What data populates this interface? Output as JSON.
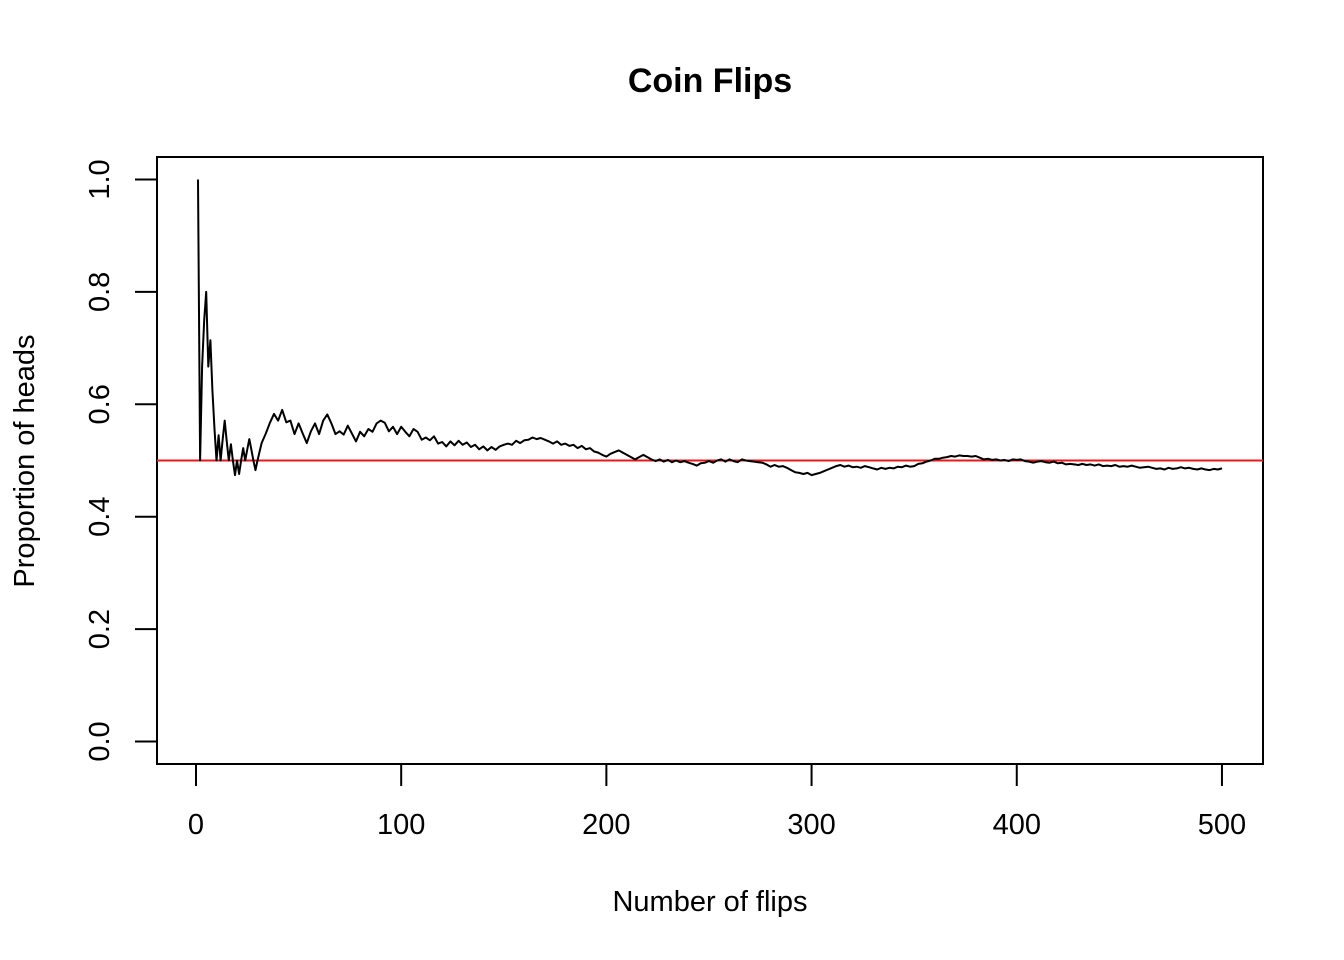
{
  "chart_data": {
    "type": "line",
    "title": "Coin Flips",
    "xlabel": "Number of flips",
    "ylabel": "Proportion of heads",
    "xlim": [
      -19,
      520
    ],
    "ylim": [
      -0.04,
      1.04
    ],
    "x_ticks": [
      0,
      100,
      200,
      300,
      400,
      500
    ],
    "x_tick_labels": [
      "0",
      "100",
      "200",
      "300",
      "400",
      "500"
    ],
    "y_ticks": [
      0.0,
      0.2,
      0.4,
      0.6,
      0.8,
      1.0
    ],
    "y_tick_labels": [
      "0.0",
      "0.2",
      "0.4",
      "0.6",
      "0.8",
      "1.0"
    ],
    "grid": false,
    "reference_line": {
      "y": 0.5,
      "color": "#e41a1c"
    },
    "series": [
      {
        "color": "#000000",
        "points": [
          [
            1,
            1.0
          ],
          [
            2,
            0.5
          ],
          [
            3,
            0.667
          ],
          [
            4,
            0.75
          ],
          [
            5,
            0.8
          ],
          [
            6,
            0.667
          ],
          [
            7,
            0.714
          ],
          [
            8,
            0.625
          ],
          [
            9,
            0.556
          ],
          [
            10,
            0.5
          ],
          [
            11,
            0.545
          ],
          [
            12,
            0.5
          ],
          [
            13,
            0.538
          ],
          [
            14,
            0.571
          ],
          [
            15,
            0.533
          ],
          [
            16,
            0.5
          ],
          [
            17,
            0.529
          ],
          [
            18,
            0.5
          ],
          [
            19,
            0.474
          ],
          [
            20,
            0.5
          ],
          [
            21,
            0.476
          ],
          [
            22,
            0.5
          ],
          [
            23,
            0.522
          ],
          [
            24,
            0.5
          ],
          [
            25,
            0.52
          ],
          [
            26,
            0.538
          ],
          [
            27,
            0.519
          ],
          [
            28,
            0.5
          ],
          [
            29,
            0.483
          ],
          [
            30,
            0.5
          ],
          [
            32,
            0.531
          ],
          [
            34,
            0.548
          ],
          [
            36,
            0.567
          ],
          [
            38,
            0.583
          ],
          [
            40,
            0.571
          ],
          [
            42,
            0.59
          ],
          [
            44,
            0.568
          ],
          [
            46,
            0.571
          ],
          [
            48,
            0.547
          ],
          [
            50,
            0.566
          ],
          [
            52,
            0.548
          ],
          [
            54,
            0.531
          ],
          [
            56,
            0.552
          ],
          [
            58,
            0.566
          ],
          [
            60,
            0.547
          ],
          [
            62,
            0.571
          ],
          [
            64,
            0.582
          ],
          [
            66,
            0.566
          ],
          [
            68,
            0.547
          ],
          [
            70,
            0.552
          ],
          [
            72,
            0.546
          ],
          [
            74,
            0.562
          ],
          [
            76,
            0.548
          ],
          [
            78,
            0.534
          ],
          [
            80,
            0.551
          ],
          [
            82,
            0.543
          ],
          [
            84,
            0.556
          ],
          [
            86,
            0.551
          ],
          [
            88,
            0.566
          ],
          [
            90,
            0.571
          ],
          [
            92,
            0.567
          ],
          [
            94,
            0.552
          ],
          [
            96,
            0.56
          ],
          [
            98,
            0.547
          ],
          [
            100,
            0.56
          ],
          [
            102,
            0.551
          ],
          [
            104,
            0.543
          ],
          [
            106,
            0.556
          ],
          [
            108,
            0.551
          ],
          [
            110,
            0.537
          ],
          [
            112,
            0.541
          ],
          [
            114,
            0.536
          ],
          [
            116,
            0.543
          ],
          [
            118,
            0.53
          ],
          [
            120,
            0.533
          ],
          [
            122,
            0.525
          ],
          [
            124,
            0.534
          ],
          [
            126,
            0.527
          ],
          [
            128,
            0.535
          ],
          [
            130,
            0.528
          ],
          [
            132,
            0.532
          ],
          [
            134,
            0.524
          ],
          [
            136,
            0.528
          ],
          [
            138,
            0.52
          ],
          [
            140,
            0.525
          ],
          [
            142,
            0.518
          ],
          [
            144,
            0.524
          ],
          [
            146,
            0.519
          ],
          [
            148,
            0.525
          ],
          [
            150,
            0.528
          ],
          [
            152,
            0.53
          ],
          [
            154,
            0.528
          ],
          [
            156,
            0.535
          ],
          [
            158,
            0.531
          ],
          [
            160,
            0.536
          ],
          [
            162,
            0.537
          ],
          [
            164,
            0.541
          ],
          [
            166,
            0.538
          ],
          [
            168,
            0.54
          ],
          [
            170,
            0.537
          ],
          [
            172,
            0.534
          ],
          [
            174,
            0.53
          ],
          [
            176,
            0.534
          ],
          [
            178,
            0.528
          ],
          [
            180,
            0.53
          ],
          [
            182,
            0.526
          ],
          [
            184,
            0.528
          ],
          [
            186,
            0.522
          ],
          [
            188,
            0.526
          ],
          [
            190,
            0.52
          ],
          [
            192,
            0.522
          ],
          [
            194,
            0.516
          ],
          [
            196,
            0.514
          ],
          [
            198,
            0.51
          ],
          [
            200,
            0.507
          ],
          [
            202,
            0.512
          ],
          [
            204,
            0.515
          ],
          [
            206,
            0.518
          ],
          [
            208,
            0.514
          ],
          [
            210,
            0.51
          ],
          [
            212,
            0.506
          ],
          [
            214,
            0.502
          ],
          [
            216,
            0.506
          ],
          [
            218,
            0.51
          ],
          [
            220,
            0.506
          ],
          [
            222,
            0.502
          ],
          [
            224,
            0.499
          ],
          [
            226,
            0.502
          ],
          [
            228,
            0.498
          ],
          [
            230,
            0.501
          ],
          [
            232,
            0.497
          ],
          [
            234,
            0.5
          ],
          [
            236,
            0.497
          ],
          [
            238,
            0.499
          ],
          [
            240,
            0.496
          ],
          [
            242,
            0.494
          ],
          [
            244,
            0.491
          ],
          [
            246,
            0.495
          ],
          [
            248,
            0.496
          ],
          [
            250,
            0.499
          ],
          [
            252,
            0.496
          ],
          [
            254,
            0.5
          ],
          [
            256,
            0.502
          ],
          [
            258,
            0.498
          ],
          [
            260,
            0.502
          ],
          [
            262,
            0.499
          ],
          [
            264,
            0.497
          ],
          [
            266,
            0.502
          ],
          [
            268,
            0.5
          ],
          [
            270,
            0.499
          ],
          [
            272,
            0.498
          ],
          [
            274,
            0.497
          ],
          [
            276,
            0.496
          ],
          [
            278,
            0.493
          ],
          [
            280,
            0.489
          ],
          [
            282,
            0.492
          ],
          [
            284,
            0.489
          ],
          [
            286,
            0.49
          ],
          [
            288,
            0.487
          ],
          [
            290,
            0.483
          ],
          [
            292,
            0.479
          ],
          [
            294,
            0.478
          ],
          [
            296,
            0.476
          ],
          [
            298,
            0.478
          ],
          [
            300,
            0.474
          ],
          [
            302,
            0.476
          ],
          [
            304,
            0.478
          ],
          [
            306,
            0.481
          ],
          [
            308,
            0.484
          ],
          [
            310,
            0.487
          ],
          [
            312,
            0.49
          ],
          [
            314,
            0.492
          ],
          [
            316,
            0.489
          ],
          [
            318,
            0.491
          ],
          [
            320,
            0.488
          ],
          [
            322,
            0.489
          ],
          [
            324,
            0.487
          ],
          [
            326,
            0.49
          ],
          [
            328,
            0.488
          ],
          [
            330,
            0.486
          ],
          [
            332,
            0.484
          ],
          [
            334,
            0.487
          ],
          [
            336,
            0.485
          ],
          [
            338,
            0.487
          ],
          [
            340,
            0.486
          ],
          [
            342,
            0.489
          ],
          [
            344,
            0.488
          ],
          [
            346,
            0.491
          ],
          [
            348,
            0.489
          ],
          [
            350,
            0.49
          ],
          [
            352,
            0.494
          ],
          [
            354,
            0.495
          ],
          [
            356,
            0.498
          ],
          [
            358,
            0.5
          ],
          [
            360,
            0.503
          ],
          [
            362,
            0.503
          ],
          [
            364,
            0.505
          ],
          [
            366,
            0.506
          ],
          [
            368,
            0.508
          ],
          [
            370,
            0.507
          ],
          [
            372,
            0.509
          ],
          [
            374,
            0.508
          ],
          [
            376,
            0.508
          ],
          [
            378,
            0.507
          ],
          [
            380,
            0.508
          ],
          [
            382,
            0.505
          ],
          [
            384,
            0.502
          ],
          [
            386,
            0.503
          ],
          [
            388,
            0.501
          ],
          [
            390,
            0.502
          ],
          [
            392,
            0.5
          ],
          [
            394,
            0.501
          ],
          [
            396,
            0.499
          ],
          [
            398,
            0.502
          ],
          [
            400,
            0.501
          ],
          [
            402,
            0.502
          ],
          [
            404,
            0.499
          ],
          [
            406,
            0.498
          ],
          [
            408,
            0.496
          ],
          [
            410,
            0.498
          ],
          [
            412,
            0.499
          ],
          [
            414,
            0.497
          ],
          [
            416,
            0.496
          ],
          [
            418,
            0.498
          ],
          [
            420,
            0.495
          ],
          [
            422,
            0.496
          ],
          [
            424,
            0.493
          ],
          [
            426,
            0.494
          ],
          [
            428,
            0.493
          ],
          [
            430,
            0.492
          ],
          [
            432,
            0.494
          ],
          [
            434,
            0.492
          ],
          [
            436,
            0.493
          ],
          [
            438,
            0.491
          ],
          [
            440,
            0.493
          ],
          [
            442,
            0.49
          ],
          [
            444,
            0.491
          ],
          [
            446,
            0.49
          ],
          [
            448,
            0.492
          ],
          [
            450,
            0.489
          ],
          [
            452,
            0.49
          ],
          [
            454,
            0.489
          ],
          [
            456,
            0.491
          ],
          [
            458,
            0.489
          ],
          [
            460,
            0.487
          ],
          [
            462,
            0.488
          ],
          [
            464,
            0.489
          ],
          [
            466,
            0.487
          ],
          [
            468,
            0.485
          ],
          [
            470,
            0.486
          ],
          [
            472,
            0.484
          ],
          [
            474,
            0.487
          ],
          [
            476,
            0.485
          ],
          [
            478,
            0.486
          ],
          [
            480,
            0.488
          ],
          [
            482,
            0.486
          ],
          [
            484,
            0.487
          ],
          [
            486,
            0.485
          ],
          [
            488,
            0.484
          ],
          [
            490,
            0.486
          ],
          [
            492,
            0.484
          ],
          [
            494,
            0.483
          ],
          [
            496,
            0.485
          ],
          [
            498,
            0.484
          ],
          [
            500,
            0.486
          ]
        ]
      }
    ]
  }
}
